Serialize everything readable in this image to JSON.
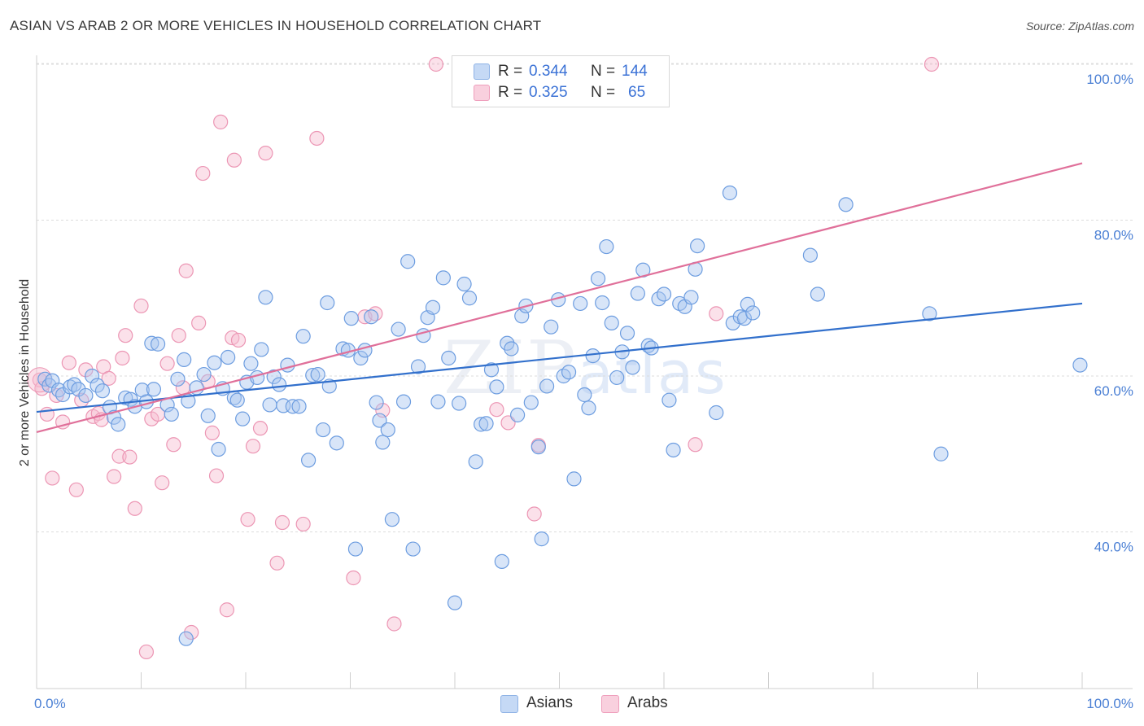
{
  "title": "ASIAN VS ARAB 2 OR MORE VEHICLES IN HOUSEHOLD CORRELATION CHART",
  "source": "Source: ZipAtlas.com",
  "watermark": {
    "zip": "ZIP",
    "atlas": "atlas"
  },
  "legend": {
    "rows": [
      {
        "r_label": "R =",
        "r_value": "0.344",
        "n_label": "N =",
        "n_value": "144",
        "color": "#a9c6ef"
      },
      {
        "r_label": "R =",
        "r_value": "0.325",
        "n_label": "N =",
        "n_value": "65",
        "color": "#f6bcd0"
      }
    ]
  },
  "bottom_legend": [
    {
      "label": "Asians",
      "color": "#a9c6ef"
    },
    {
      "label": "Arabs",
      "color": "#f6bcd0"
    }
  ],
  "chart_data": {
    "type": "scatter",
    "title": "ASIAN VS ARAB 2 OR MORE VEHICLES IN HOUSEHOLD CORRELATION CHART",
    "xlabel": "",
    "ylabel": "2 or more Vehicles in Household",
    "xlim": [
      0,
      100
    ],
    "ylim": [
      20,
      102
    ],
    "x_tick_labels": [
      "0.0%",
      "100.0%"
    ],
    "y_ticks": [
      40,
      60,
      80,
      100
    ],
    "y_tick_labels": [
      "40.0%",
      "60.0%",
      "80.0%",
      "100.0%"
    ],
    "grid": true,
    "legend_position": "top-center",
    "series": [
      {
        "name": "Asians",
        "color": "#a9c6ef",
        "stroke": "#6d9de0",
        "trend": {
          "x": [
            0,
            100
          ],
          "y": [
            55.4,
            69.3
          ],
          "color": "#3270cc"
        },
        "points": [
          [
            0.8,
            59.6
          ],
          [
            1.2,
            58.8
          ],
          [
            1.5,
            59.4
          ],
          [
            2.1,
            58.2
          ],
          [
            2.5,
            57.6
          ],
          [
            3.2,
            58.6
          ],
          [
            3.6,
            58.9
          ],
          [
            4.0,
            58.3
          ],
          [
            4.7,
            57.5
          ],
          [
            5.3,
            60.0
          ],
          [
            5.8,
            58.8
          ],
          [
            6.3,
            58.1
          ],
          [
            7.0,
            56.0
          ],
          [
            7.4,
            54.7
          ],
          [
            7.8,
            53.8
          ],
          [
            8.5,
            57.2
          ],
          [
            9.0,
            57.0
          ],
          [
            9.4,
            56.1
          ],
          [
            10.1,
            58.2
          ],
          [
            10.5,
            56.7
          ],
          [
            11.2,
            58.3
          ],
          [
            11.0,
            64.2
          ],
          [
            11.6,
            64.1
          ],
          [
            12.5,
            56.3
          ],
          [
            12.9,
            55.1
          ],
          [
            13.5,
            59.6
          ],
          [
            14.1,
            62.1
          ],
          [
            14.5,
            56.8
          ],
          [
            15.3,
            58.5
          ],
          [
            16.0,
            60.2
          ],
          [
            16.4,
            54.9
          ],
          [
            17.0,
            61.7
          ],
          [
            17.4,
            50.6
          ],
          [
            17.8,
            58.4
          ],
          [
            18.3,
            62.4
          ],
          [
            18.9,
            57.2
          ],
          [
            19.2,
            56.9
          ],
          [
            19.7,
            54.5
          ],
          [
            20.1,
            59.2
          ],
          [
            20.5,
            61.6
          ],
          [
            21.1,
            59.8
          ],
          [
            21.5,
            63.4
          ],
          [
            21.9,
            70.1
          ],
          [
            22.3,
            56.3
          ],
          [
            22.7,
            59.9
          ],
          [
            23.2,
            58.9
          ],
          [
            23.6,
            56.2
          ],
          [
            24.0,
            61.4
          ],
          [
            24.5,
            56.1
          ],
          [
            25.1,
            56.1
          ],
          [
            25.5,
            65.1
          ],
          [
            26.0,
            49.2
          ],
          [
            26.4,
            60.1
          ],
          [
            26.9,
            60.2
          ],
          [
            27.4,
            53.1
          ],
          [
            27.8,
            69.4
          ],
          [
            28.0,
            58.7
          ],
          [
            28.7,
            51.4
          ],
          [
            29.3,
            63.5
          ],
          [
            29.8,
            63.3
          ],
          [
            30.1,
            67.4
          ],
          [
            30.5,
            37.8
          ],
          [
            31.0,
            62.3
          ],
          [
            31.4,
            63.3
          ],
          [
            32.0,
            67.6
          ],
          [
            32.5,
            56.6
          ],
          [
            32.8,
            54.3
          ],
          [
            33.1,
            51.5
          ],
          [
            33.6,
            53.1
          ],
          [
            34.0,
            41.6
          ],
          [
            34.6,
            66.0
          ],
          [
            35.1,
            56.7
          ],
          [
            35.5,
            74.7
          ],
          [
            36.0,
            37.8
          ],
          [
            36.5,
            61.2
          ],
          [
            37.0,
            65.2
          ],
          [
            37.4,
            67.5
          ],
          [
            37.9,
            68.8
          ],
          [
            38.4,
            56.7
          ],
          [
            38.9,
            72.6
          ],
          [
            39.4,
            62.3
          ],
          [
            40.0,
            30.9
          ],
          [
            40.4,
            56.5
          ],
          [
            40.9,
            71.8
          ],
          [
            41.4,
            70.0
          ],
          [
            42.0,
            49.0
          ],
          [
            42.5,
            53.8
          ],
          [
            43.0,
            53.9
          ],
          [
            43.5,
            60.8
          ],
          [
            44.0,
            58.6
          ],
          [
            44.5,
            36.2
          ],
          [
            45.0,
            64.2
          ],
          [
            45.4,
            63.5
          ],
          [
            46.0,
            55.0
          ],
          [
            46.4,
            67.7
          ],
          [
            46.8,
            69.0
          ],
          [
            47.3,
            56.6
          ],
          [
            48.0,
            50.9
          ],
          [
            48.3,
            39.1
          ],
          [
            48.8,
            58.7
          ],
          [
            49.2,
            66.3
          ],
          [
            49.9,
            69.8
          ],
          [
            50.4,
            60.0
          ],
          [
            50.9,
            60.5
          ],
          [
            51.4,
            46.8
          ],
          [
            52.0,
            69.3
          ],
          [
            52.4,
            57.6
          ],
          [
            52.8,
            55.9
          ],
          [
            53.2,
            62.6
          ],
          [
            53.7,
            72.5
          ],
          [
            54.1,
            69.4
          ],
          [
            54.5,
            76.6
          ],
          [
            55.0,
            66.8
          ],
          [
            55.5,
            59.8
          ],
          [
            56.0,
            63.1
          ],
          [
            56.5,
            65.5
          ],
          [
            57.0,
            61.1
          ],
          [
            57.5,
            70.6
          ],
          [
            58.0,
            73.6
          ],
          [
            58.5,
            63.9
          ],
          [
            58.8,
            63.6
          ],
          [
            59.5,
            69.9
          ],
          [
            60.0,
            70.5
          ],
          [
            60.5,
            56.9
          ],
          [
            60.9,
            50.5
          ],
          [
            61.5,
            69.3
          ],
          [
            62.0,
            68.9
          ],
          [
            62.6,
            70.1
          ],
          [
            63.0,
            73.7
          ],
          [
            63.2,
            76.7
          ],
          [
            65.0,
            55.3
          ],
          [
            66.3,
            83.5
          ],
          [
            66.6,
            66.8
          ],
          [
            67.3,
            67.6
          ],
          [
            67.7,
            67.4
          ],
          [
            68.0,
            69.2
          ],
          [
            68.5,
            68.1
          ],
          [
            74.0,
            75.5
          ],
          [
            74.7,
            70.5
          ],
          [
            77.4,
            82.0
          ],
          [
            85.4,
            68.0
          ],
          [
            86.5,
            50.0
          ],
          [
            99.8,
            61.4
          ],
          [
            14.3,
            26.3
          ]
        ]
      },
      {
        "name": "Arabs",
        "color": "#f6bcd0",
        "stroke": "#ec96b4",
        "trend": {
          "x": [
            0,
            100
          ],
          "y": [
            52.8,
            87.3
          ],
          "color": "#e0709a"
        },
        "points": [
          [
            0.3,
            59.5
          ],
          [
            1.0,
            55.1
          ],
          [
            1.5,
            46.9
          ],
          [
            1.9,
            57.5
          ],
          [
            2.5,
            54.1
          ],
          [
            3.1,
            61.7
          ],
          [
            3.8,
            45.4
          ],
          [
            4.3,
            56.9
          ],
          [
            4.7,
            60.8
          ],
          [
            5.4,
            54.8
          ],
          [
            5.9,
            55.2
          ],
          [
            6.2,
            54.4
          ],
          [
            6.4,
            61.2
          ],
          [
            6.9,
            59.7
          ],
          [
            7.4,
            47.1
          ],
          [
            7.9,
            49.7
          ],
          [
            8.2,
            62.3
          ],
          [
            8.5,
            65.2
          ],
          [
            8.9,
            49.6
          ],
          [
            9.4,
            43.0
          ],
          [
            10.0,
            69.0
          ],
          [
            10.5,
            24.6
          ],
          [
            11.0,
            54.5
          ],
          [
            11.6,
            55.1
          ],
          [
            12.0,
            46.3
          ],
          [
            12.5,
            61.6
          ],
          [
            13.1,
            51.2
          ],
          [
            13.6,
            65.2
          ],
          [
            14.0,
            58.5
          ],
          [
            14.3,
            73.5
          ],
          [
            14.8,
            27.1
          ],
          [
            15.5,
            66.8
          ],
          [
            15.9,
            86.0
          ],
          [
            16.4,
            59.3
          ],
          [
            16.8,
            52.7
          ],
          [
            17.2,
            47.2
          ],
          [
            17.6,
            92.6
          ],
          [
            18.2,
            30.0
          ],
          [
            18.7,
            64.9
          ],
          [
            18.9,
            87.7
          ],
          [
            19.3,
            64.6
          ],
          [
            20.2,
            41.6
          ],
          [
            20.7,
            51.0
          ],
          [
            21.4,
            53.3
          ],
          [
            21.9,
            88.6
          ],
          [
            23.0,
            36.0
          ],
          [
            23.5,
            41.2
          ],
          [
            25.5,
            41.0
          ],
          [
            26.8,
            90.5
          ],
          [
            30.3,
            34.1
          ],
          [
            31.4,
            67.6
          ],
          [
            32.4,
            68.0
          ],
          [
            33.1,
            55.6
          ],
          [
            34.2,
            28.2
          ],
          [
            38.2,
            100.0
          ],
          [
            44.0,
            55.7
          ],
          [
            45.1,
            54.0
          ],
          [
            47.6,
            42.3
          ],
          [
            48.0,
            51.1
          ],
          [
            54.0,
            100.0
          ],
          [
            58.7,
            100.0
          ],
          [
            63.0,
            51.2
          ],
          [
            65.0,
            68.0
          ],
          [
            85.6,
            100.0
          ],
          [
            0.5,
            58.4
          ]
        ]
      }
    ]
  }
}
